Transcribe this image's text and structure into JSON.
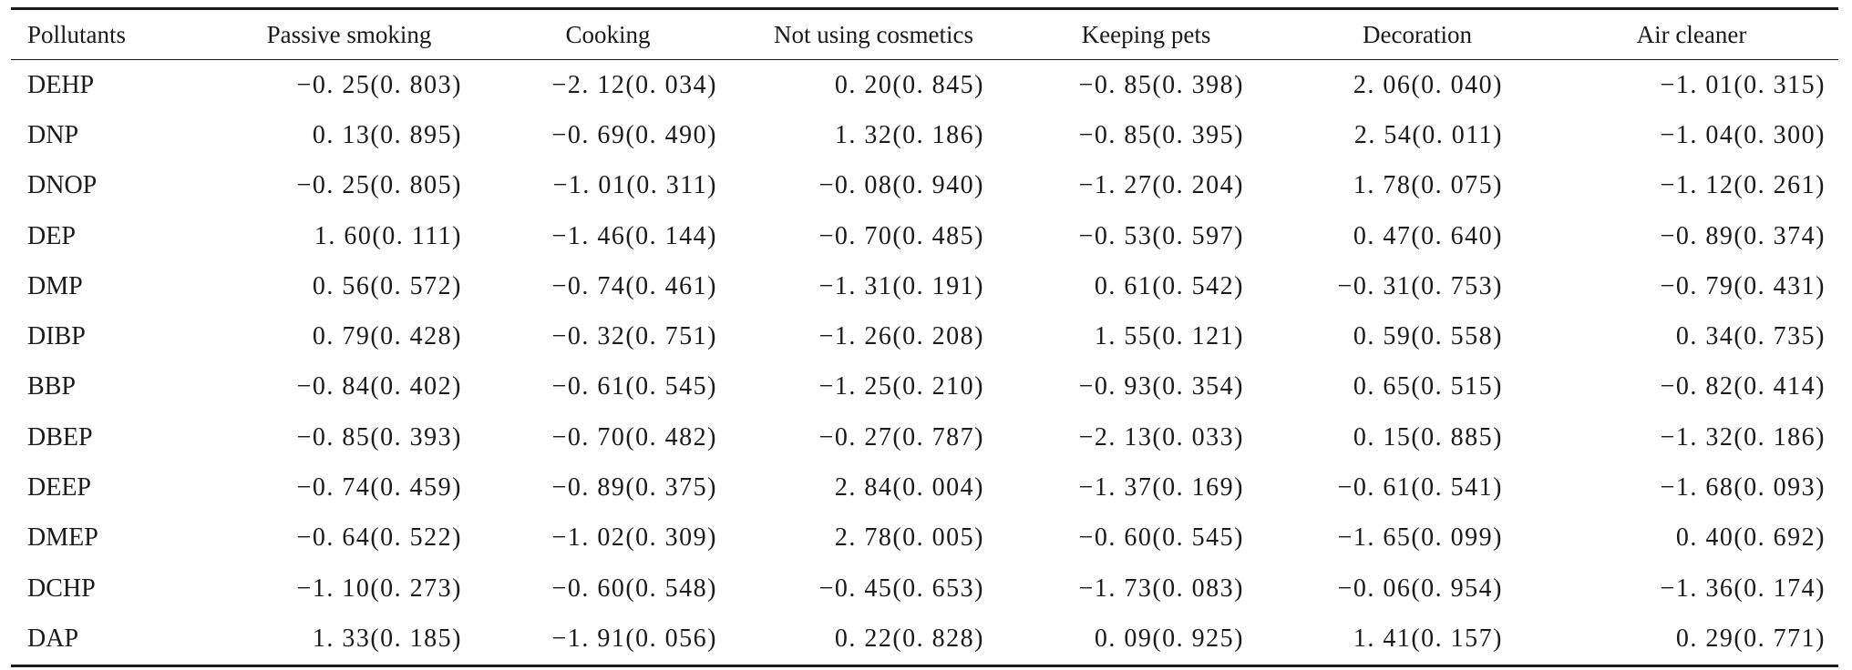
{
  "table": {
    "headers": [
      "Pollutants",
      "Passive smoking",
      "Cooking",
      "Not using cosmetics",
      "Keeping pets",
      "Decoration",
      "Air cleaner"
    ],
    "rows": [
      [
        "DEHP",
        "−0. 25(0. 803)",
        "−2. 12(0. 034)",
        "0. 20(0. 845)",
        "−0. 85(0. 398)",
        "2. 06(0. 040)",
        "−1. 01(0. 315)"
      ],
      [
        "DNP",
        "0. 13(0. 895)",
        "−0. 69(0. 490)",
        "1. 32(0. 186)",
        "−0. 85(0. 395)",
        "2. 54(0. 011)",
        "−1. 04(0. 300)"
      ],
      [
        "DNOP",
        "−0. 25(0. 805)",
        "−1. 01(0. 311)",
        "−0. 08(0. 940)",
        "−1. 27(0. 204)",
        "1. 78(0. 075)",
        "−1. 12(0. 261)"
      ],
      [
        "DEP",
        "1. 60(0. 111)",
        "−1. 46(0. 144)",
        "−0. 70(0. 485)",
        "−0. 53(0. 597)",
        "0. 47(0. 640)",
        "−0. 89(0. 374)"
      ],
      [
        "DMP",
        "0. 56(0. 572)",
        "−0. 74(0. 461)",
        "−1. 31(0. 191)",
        "0. 61(0. 542)",
        "−0. 31(0. 753)",
        "−0. 79(0. 431)"
      ],
      [
        "DIBP",
        "0. 79(0. 428)",
        "−0. 32(0. 751)",
        "−1. 26(0. 208)",
        "1. 55(0. 121)",
        "0. 59(0. 558)",
        "0. 34(0. 735)"
      ],
      [
        "BBP",
        "−0. 84(0. 402)",
        "−0. 61(0. 545)",
        "−1. 25(0. 210)",
        "−0. 93(0. 354)",
        "0. 65(0. 515)",
        "−0. 82(0. 414)"
      ],
      [
        "DBEP",
        "−0. 85(0. 393)",
        "−0. 70(0. 482)",
        "−0. 27(0. 787)",
        "−2. 13(0. 033)",
        "0. 15(0. 885)",
        "−1. 32(0. 186)"
      ],
      [
        "DEEP",
        "−0. 74(0. 459)",
        "−0. 89(0. 375)",
        "2. 84(0. 004)",
        "−1. 37(0. 169)",
        "−0. 61(0. 541)",
        "−1. 68(0. 093)"
      ],
      [
        "DMEP",
        "−0. 64(0. 522)",
        "−1. 02(0. 309)",
        "2. 78(0. 005)",
        "−0. 60(0. 545)",
        "−1. 65(0. 099)",
        "0. 40(0. 692)"
      ],
      [
        "DCHP",
        "−1. 10(0. 273)",
        "−0. 60(0. 548)",
        "−0. 45(0. 653)",
        "−1. 73(0. 083)",
        "−0. 06(0. 954)",
        "−1. 36(0. 174)"
      ],
      [
        "DAP",
        "1. 33(0. 185)",
        "−1. 91(0. 056)",
        "0. 22(0. 828)",
        "0. 09(0. 925)",
        "1. 41(0. 157)",
        "0. 29(0. 771)"
      ]
    ]
  }
}
